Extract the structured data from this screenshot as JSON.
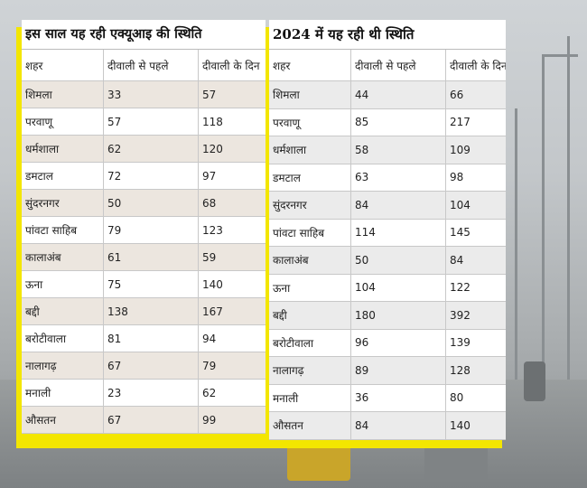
{
  "left_table": {
    "title": "इस साल यह रही एक्यूआइ की स्थिति",
    "headers": [
      "शहर",
      "दीवाली से पहले",
      "दीवाली के दिन"
    ],
    "rows": [
      [
        "शिमला",
        "33",
        "57"
      ],
      [
        "परवाणू",
        "57",
        "118"
      ],
      [
        "धर्मशाला",
        "62",
        "120"
      ],
      [
        "डमटाल",
        "72",
        "97"
      ],
      [
        "सुंदरनगर",
        "50",
        "68"
      ],
      [
        "पांवटा साहिब",
        "79",
        "123"
      ],
      [
        "कालाअंब",
        "61",
        "59"
      ],
      [
        "ऊना",
        "75",
        "140"
      ],
      [
        "बद्दी",
        "138",
        "167"
      ],
      [
        "बरोटीवाला",
        "81",
        "94"
      ],
      [
        "नालागढ़",
        "67",
        "79"
      ],
      [
        "मनाली",
        "23",
        "62"
      ],
      [
        "औसतन",
        "67",
        "99"
      ]
    ]
  },
  "right_table": {
    "title": "2024 में यह रही थी स्थिति",
    "headers": [
      "शहर",
      "दीवाली से पहले",
      "दीवाली के दिन"
    ],
    "rows": [
      [
        "शिमला",
        "44",
        "66"
      ],
      [
        "परवाणू",
        "85",
        "217"
      ],
      [
        "धर्मशाला",
        "58",
        "109"
      ],
      [
        "डमटाल",
        "63",
        "98"
      ],
      [
        "सुंदरनगर",
        "84",
        "104"
      ],
      [
        "पांवटा साहिब",
        "114",
        "145"
      ],
      [
        "कालाअंब",
        "50",
        "84"
      ],
      [
        "ऊना",
        "104",
        "122"
      ],
      [
        "बद्दी",
        "180",
        "392"
      ],
      [
        "बरोटीवाला",
        "96",
        "139"
      ],
      [
        "नालागढ़",
        "89",
        "128"
      ],
      [
        "मनाली",
        "36",
        "80"
      ],
      [
        "औसतन",
        "84",
        "140"
      ]
    ]
  },
  "colors": {
    "frame": "#f3e600",
    "left_row_shade": "#ece6df",
    "right_row_shade": "#ebebeb"
  }
}
